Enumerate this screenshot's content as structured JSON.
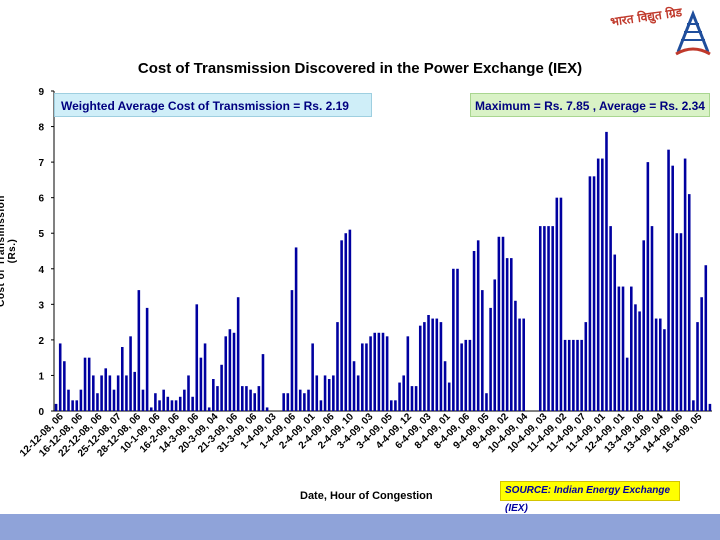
{
  "logo": {
    "text": "भारत विद्युत ग्रिड"
  },
  "chart_data": {
    "type": "bar",
    "title": "Cost of Transmission Discovered in the Power Exchange (IEX)",
    "ylabel": "Cost of Transmission (Rs.)",
    "xlabel": "Date, Hour of Congestion",
    "ylim": [
      0,
      9
    ],
    "yticks": [
      0,
      1,
      2,
      3,
      4,
      5,
      6,
      7,
      8,
      9
    ],
    "tick_labels": [
      "12-12-08, 06",
      "16-12-08, 06",
      "22-12-08, 06",
      "25-12-08, 07",
      "28-12-08, 06",
      "10-1-09, 06",
      "16-2-09, 06",
      "14-3-09, 06",
      "20-3-09, 04",
      "21-3-09, 06",
      "31-3-09, 06",
      "1-4-09, 03",
      "1-4-09, 06",
      "2-4-09, 01",
      "2-4-09, 06",
      "2-4-09, 10",
      "3-4-09, 03",
      "3-4-09, 05",
      "4-4-09, 12",
      "6-4-09, 03",
      "8-4-09, 01",
      "8-4-09, 06",
      "9-4-09, 05",
      "9-4-09, 02",
      "10-4-09, 04",
      "10-4-09, 03",
      "11-4-09, 02",
      "11-4-09, 07",
      "11-4-09, 01",
      "12-4-09, 01",
      "13-4-09, 06",
      "13-4-09, 04",
      "14-4-09, 06",
      "16-4-09, 05"
    ],
    "values": [
      0.2,
      1.9,
      1.4,
      0.6,
      0.3,
      0.3,
      0.6,
      1.5,
      1.5,
      1.0,
      0.5,
      1.0,
      1.2,
      1.0,
      0.6,
      1.0,
      1.8,
      1.0,
      2.1,
      1.1,
      3.4,
      0.6,
      2.9,
      0.1,
      0.5,
      0.3,
      0.6,
      0.4,
      0.3,
      0.3,
      0.4,
      0.6,
      1.0,
      0.4,
      3.0,
      1.5,
      1.9,
      0.1,
      0.9,
      0.7,
      1.3,
      2.1,
      2.3,
      2.2,
      3.2,
      0.7,
      0.7,
      0.6,
      0.5,
      0.7,
      1.6,
      0.1,
      0,
      0,
      0,
      0.5,
      0.5,
      3.4,
      4.6,
      0.6,
      0.5,
      0.6,
      1.9,
      1.0,
      0.3,
      1.0,
      0.9,
      1.0,
      2.5,
      4.8,
      5.0,
      5.1,
      1.4,
      1.0,
      1.9,
      1.9,
      2.1,
      2.2,
      2.2,
      2.2,
      2.1,
      0.3,
      0.3,
      0.8,
      1.0,
      2.1,
      0.7,
      0.7,
      2.4,
      2.5,
      2.7,
      2.6,
      2.6,
      2.5,
      1.4,
      0.8,
      4.0,
      4.0,
      1.9,
      2.0,
      2.0,
      4.5,
      4.8,
      3.4,
      0.5,
      2.9,
      3.7,
      4.9,
      4.9,
      4.3,
      4.3,
      3.1,
      2.6,
      2.6,
      0,
      0,
      0,
      5.2,
      5.2,
      5.2,
      5.2,
      6.0,
      6.0,
      2.0,
      2.0,
      2.0,
      2.0,
      2.0,
      2.5,
      6.6,
      6.6,
      7.1,
      7.1,
      7.85,
      5.2,
      4.4,
      3.5,
      3.5,
      1.5,
      3.5,
      3.0,
      2.8,
      4.8,
      7.0,
      5.2,
      2.6,
      2.6,
      2.3,
      7.35,
      6.9,
      5.0,
      5.0,
      7.1,
      6.1,
      0.3,
      2.5,
      3.2,
      4.1,
      0.2
    ],
    "annotations": {
      "weighted_avg": "Weighted Average Cost of Transmission = Rs. 2.19",
      "max_avg": "Maximum = Rs. 7.85 , Average = Rs. 2.34"
    },
    "source": "SOURCE: Indian Energy Exchange (IEX)",
    "bar_color": "#0000a0",
    "grid": false
  }
}
